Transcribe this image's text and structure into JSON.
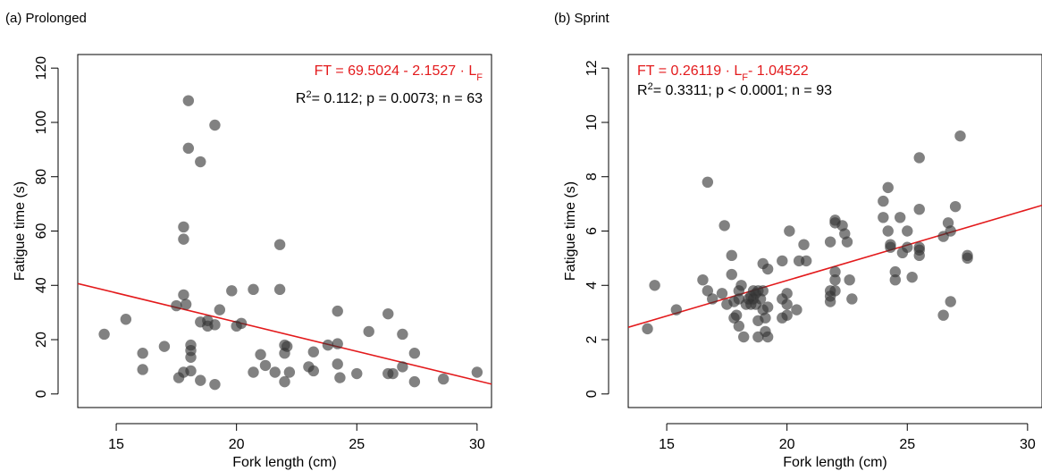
{
  "chart_data": [
    {
      "type": "scatter",
      "panel_label": "(a) Prolonged",
      "xlabel": "Fork length (cm)",
      "ylabel": "Fatigue time (s)",
      "xlim": [
        13.4,
        30.6
      ],
      "ylim": [
        -5,
        125
      ],
      "xticks": [
        "15",
        "20",
        "25",
        "30"
      ],
      "yticks": [
        "0",
        "20",
        "40",
        "60",
        "80",
        "100",
        "120"
      ],
      "equation": {
        "prefix": "FT = 69.5024 - 2.1527 · L",
        "sub": "F",
        "suffix": ""
      },
      "stats": {
        "r": "R",
        "sup": "2",
        "text": "= 0.112; p = 0.0073; n = 63"
      },
      "fit": {
        "intercept": 69.5024,
        "slope": -2.1527,
        "color": "#e31a1c"
      },
      "point_color": "#333333",
      "points": [
        [
          14.5,
          22
        ],
        [
          15.4,
          27.5
        ],
        [
          16.1,
          15
        ],
        [
          16.1,
          9
        ],
        [
          17,
          17.5
        ],
        [
          17.5,
          32.5
        ],
        [
          17.6,
          6
        ],
        [
          17.8,
          61.5
        ],
        [
          17.8,
          57
        ],
        [
          17.8,
          36.5
        ],
        [
          17.8,
          8
        ],
        [
          17.9,
          33
        ],
        [
          18,
          108
        ],
        [
          18,
          90.5
        ],
        [
          18.1,
          18
        ],
        [
          18.1,
          16
        ],
        [
          18.1,
          13.5
        ],
        [
          18.1,
          8.5
        ],
        [
          18.5,
          85.5
        ],
        [
          18.5,
          26.5
        ],
        [
          18.5,
          5
        ],
        [
          18.8,
          27
        ],
        [
          18.8,
          25
        ],
        [
          19.1,
          99
        ],
        [
          19.1,
          25.5
        ],
        [
          19.1,
          3.5
        ],
        [
          19.3,
          31
        ],
        [
          19.8,
          38
        ],
        [
          20,
          25
        ],
        [
          20.2,
          26
        ],
        [
          20.7,
          38.5
        ],
        [
          20.7,
          8
        ],
        [
          21,
          14.5
        ],
        [
          21.2,
          10.5
        ],
        [
          21.6,
          8
        ],
        [
          21.8,
          55
        ],
        [
          21.8,
          38.5
        ],
        [
          22,
          18
        ],
        [
          22,
          15
        ],
        [
          22,
          4.5
        ],
        [
          22.1,
          17.5
        ],
        [
          22.2,
          8
        ],
        [
          23,
          10
        ],
        [
          23.2,
          15.5
        ],
        [
          23.2,
          8.5
        ],
        [
          23.8,
          18
        ],
        [
          24.2,
          30.5
        ],
        [
          24.2,
          18.5
        ],
        [
          24.2,
          11
        ],
        [
          24.3,
          6
        ],
        [
          25,
          7.5
        ],
        [
          25.5,
          23
        ],
        [
          26.3,
          29.5
        ],
        [
          26.3,
          7.5
        ],
        [
          26.5,
          7.5
        ],
        [
          26.9,
          22
        ],
        [
          26.9,
          10
        ],
        [
          27.4,
          15
        ],
        [
          27.4,
          4.5
        ],
        [
          28.6,
          5.5
        ],
        [
          30,
          8
        ]
      ]
    },
    {
      "type": "scatter",
      "panel_label": "(b) Sprint",
      "xlabel": "Fork length (cm)",
      "ylabel": "Fatigue time (s)",
      "xlim": [
        13.4,
        30.6
      ],
      "ylim": [
        -0.5,
        12.5
      ],
      "xticks": [
        "15",
        "20",
        "25",
        "30"
      ],
      "yticks": [
        "0",
        "2",
        "4",
        "6",
        "8",
        "10",
        "12"
      ],
      "equation": {
        "prefix": "FT = 0.26119 · L",
        "sub": "F",
        "suffix": "- 1.04522"
      },
      "stats": {
        "r": "R",
        "sup": "2",
        "text": "= 0.3311; p < 0.0001; n = 93"
      },
      "fit": {
        "intercept": -1.04522,
        "slope": 0.26119,
        "color": "#e31a1c"
      },
      "point_color": "#333333",
      "points": [
        [
          14.2,
          2.4
        ],
        [
          14.5,
          4
        ],
        [
          15.4,
          3.1
        ],
        [
          16.5,
          4.2
        ],
        [
          16.7,
          7.8
        ],
        [
          16.7,
          3.8
        ],
        [
          16.9,
          3.5
        ],
        [
          17.3,
          3.7
        ],
        [
          17.4,
          6.2
        ],
        [
          17.5,
          3.3
        ],
        [
          17.7,
          5.1
        ],
        [
          17.7,
          4.4
        ],
        [
          17.8,
          3.4
        ],
        [
          17.8,
          2.8
        ],
        [
          17.9,
          2.9
        ],
        [
          18,
          3.8
        ],
        [
          18,
          3.5
        ],
        [
          18,
          2.5
        ],
        [
          18.1,
          4
        ],
        [
          18.2,
          2.1
        ],
        [
          18.3,
          3.3
        ],
        [
          18.4,
          3.5
        ],
        [
          18.5,
          3.6
        ],
        [
          18.5,
          3.3
        ],
        [
          18.6,
          3.8
        ],
        [
          18.6,
          3.5
        ],
        [
          18.7,
          3.7
        ],
        [
          18.7,
          3.3
        ],
        [
          18.8,
          3.8
        ],
        [
          18.8,
          2.7
        ],
        [
          18.8,
          2.1
        ],
        [
          18.9,
          3.5
        ],
        [
          19,
          4.8
        ],
        [
          19,
          3.8
        ],
        [
          19,
          3.1
        ],
        [
          19.1,
          2.8
        ],
        [
          19.1,
          2.3
        ],
        [
          19.2,
          4.6
        ],
        [
          19.2,
          3.2
        ],
        [
          19.2,
          2.1
        ],
        [
          19.8,
          4.9
        ],
        [
          19.8,
          3.5
        ],
        [
          19.8,
          2.8
        ],
        [
          20,
          3.7
        ],
        [
          20,
          3.3
        ],
        [
          20,
          2.9
        ],
        [
          20.1,
          6
        ],
        [
          20.4,
          3.1
        ],
        [
          20.5,
          4.9
        ],
        [
          20.7,
          5.5
        ],
        [
          20.8,
          4.9
        ],
        [
          21.8,
          5.6
        ],
        [
          21.8,
          3.8
        ],
        [
          21.8,
          3.6
        ],
        [
          21.8,
          3.4
        ],
        [
          22,
          6.4
        ],
        [
          22,
          6.3
        ],
        [
          22,
          4.5
        ],
        [
          22,
          4.2
        ],
        [
          22,
          3.8
        ],
        [
          22.3,
          6.2
        ],
        [
          22.4,
          5.9
        ],
        [
          22.5,
          5.6
        ],
        [
          22.6,
          4.2
        ],
        [
          22.7,
          3.5
        ],
        [
          24,
          7.1
        ],
        [
          24,
          6.5
        ],
        [
          24.2,
          7.6
        ],
        [
          24.2,
          6
        ],
        [
          24.3,
          5.5
        ],
        [
          24.3,
          5.4
        ],
        [
          24.5,
          4.5
        ],
        [
          24.5,
          4.2
        ],
        [
          24.7,
          6.5
        ],
        [
          24.8,
          5.2
        ],
        [
          25,
          6
        ],
        [
          25,
          5.4
        ],
        [
          25.2,
          4.3
        ],
        [
          25.5,
          8.7
        ],
        [
          25.5,
          6.8
        ],
        [
          25.5,
          5.4
        ],
        [
          25.5,
          5.3
        ],
        [
          25.5,
          5.1
        ],
        [
          26.5,
          5.8
        ],
        [
          26.5,
          2.9
        ],
        [
          26.7,
          6.3
        ],
        [
          26.8,
          6
        ],
        [
          26.8,
          3.4
        ],
        [
          27,
          6.9
        ],
        [
          27.2,
          9.5
        ],
        [
          27.5,
          5.1
        ],
        [
          27.5,
          5
        ]
      ]
    }
  ]
}
